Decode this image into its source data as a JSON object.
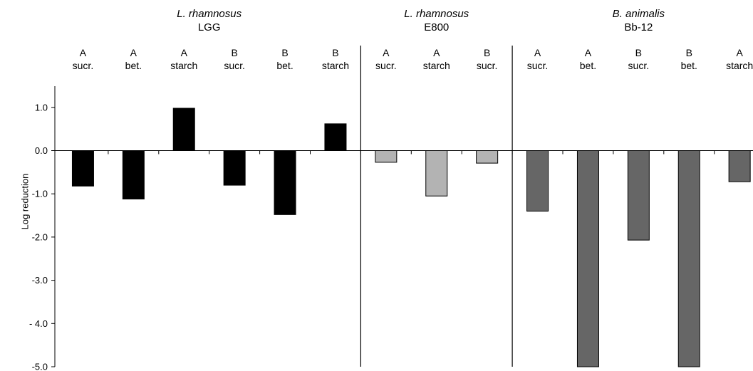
{
  "chart_data": {
    "type": "bar",
    "ylabel": "Log reduction",
    "ylim": [
      -5.0,
      1.5
    ],
    "yticks": [
      "1.0",
      "0.0",
      "-1.0",
      "-2.0",
      "-3.0",
      "- 4.0",
      "-5.0"
    ],
    "ytick_values": [
      1.0,
      0.0,
      -1.0,
      -2.0,
      -3.0,
      -4.0,
      -5.0
    ],
    "groups": [
      {
        "species": "L. rhamnosus",
        "strain": "LGG",
        "color": "#000000",
        "categories": [
          {
            "line1": "A",
            "line2": "sucr."
          },
          {
            "line1": "A",
            "line2": "bet."
          },
          {
            "line1": "A",
            "line2": "starch"
          },
          {
            "line1": "B",
            "line2": "sucr."
          },
          {
            "line1": "B",
            "line2": "bet."
          },
          {
            "line1": "B",
            "line2": "starch"
          }
        ],
        "values": [
          -0.82,
          -1.12,
          0.98,
          -0.8,
          -1.48,
          0.62
        ]
      },
      {
        "species": "L. rhamnosus",
        "strain": "E800",
        "color": "#b3b3b3",
        "categories": [
          {
            "line1": "A",
            "line2": "sucr."
          },
          {
            "line1": "A",
            "line2": "starch"
          },
          {
            "line1": "B",
            "line2": "sucr."
          }
        ],
        "values": [
          -0.27,
          -1.05,
          -0.29
        ]
      },
      {
        "species": "B. animalis",
        "strain": "Bb-12",
        "color": "#666666",
        "categories": [
          {
            "line1": "A",
            "line2": "sucr."
          },
          {
            "line1": "A",
            "line2": "bet."
          },
          {
            "line1": "B",
            "line2": "sucr."
          },
          {
            "line1": "B",
            "line2": "bet."
          },
          {
            "line1": "A",
            "line2": "starch"
          }
        ],
        "values": [
          -1.4,
          -5.0,
          -2.07,
          -5.0,
          -0.72
        ]
      }
    ]
  }
}
